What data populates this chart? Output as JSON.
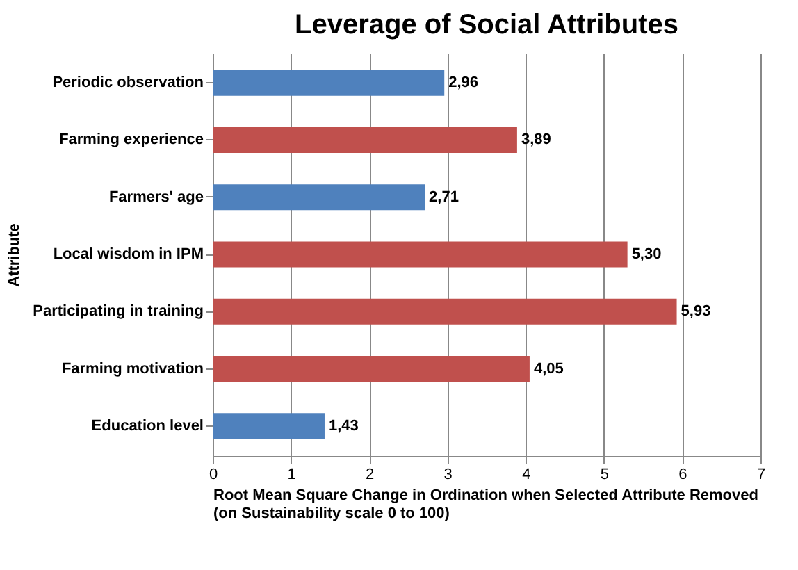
{
  "chart_data": {
    "type": "bar",
    "orientation": "horizontal",
    "title": "Leverage of Social Attributes",
    "xlabel": "Root Mean Square Change in Ordination when Selected Attribute Removed\n(on Sustainability scale 0 to 100)",
    "ylabel": "Attribute",
    "categories": [
      "Periodic observation",
      "Farming experience",
      "Farmers' age",
      "Local wisdom in IPM",
      "Participating in training",
      "Farming motivation",
      "Education level"
    ],
    "values": [
      2.96,
      3.89,
      2.71,
      5.3,
      5.93,
      4.05,
      1.43
    ],
    "value_labels": [
      "2,96",
      "3,89",
      "2,71",
      "5,30",
      "5,93",
      "4,05",
      "1,43"
    ],
    "colors": [
      "#4f81bd",
      "#c0504d",
      "#4f81bd",
      "#c0504d",
      "#c0504d",
      "#c0504d",
      "#4f81bd"
    ],
    "xlim": [
      0,
      7
    ],
    "xticks": [
      0,
      1,
      2,
      3,
      4,
      5,
      6,
      7
    ],
    "grid": "x",
    "legend": false
  }
}
